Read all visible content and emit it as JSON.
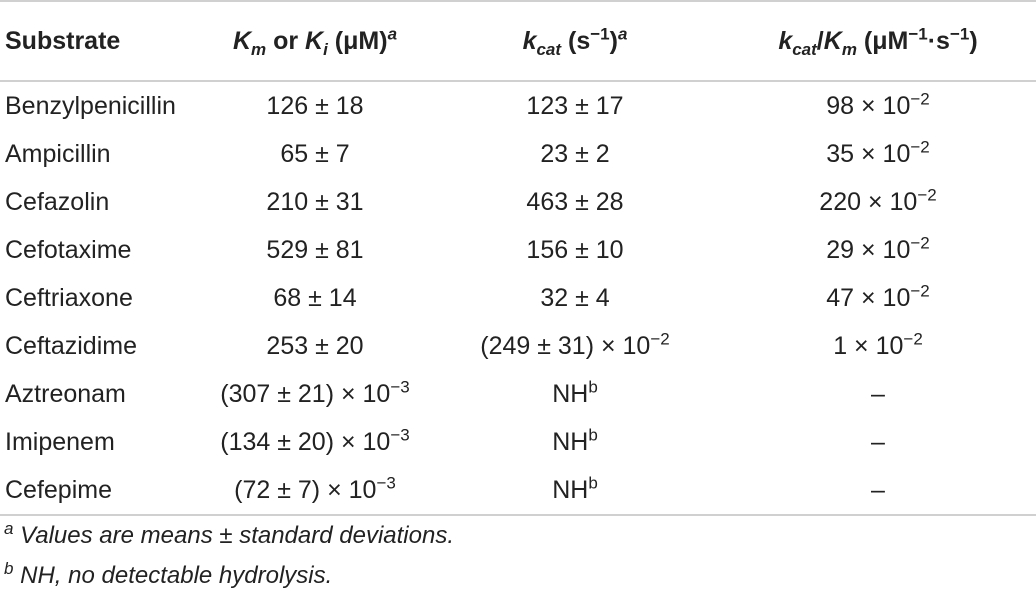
{
  "table": {
    "header": [
      [
        "Substrate"
      ],
      [
        "K",
        "m",
        " or ",
        "K",
        "i",
        " (μM)",
        "a"
      ],
      [
        "k",
        "cat",
        " (s",
        "−1",
        ")",
        "a"
      ],
      [
        "k",
        "cat",
        "/",
        "K",
        "m",
        " (μM",
        "−1",
        "·s",
        "−1",
        ")"
      ]
    ],
    "rows": [
      [
        "Benzylpenicillin",
        "126 ± 18",
        "123 ± 17",
        [
          "98 × 10",
          "−2"
        ]
      ],
      [
        "Ampicillin",
        "65 ± 7",
        "23 ± 2",
        [
          "35 × 10",
          "−2"
        ]
      ],
      [
        "Cefazolin",
        "210 ± 31",
        "463 ± 28",
        [
          "220 × 10",
          "−2"
        ]
      ],
      [
        "Cefotaxime",
        "529 ± 81",
        "156 ± 10",
        [
          "29 × 10",
          "−2"
        ]
      ],
      [
        "Ceftriaxone",
        "68 ± 14",
        "32 ± 4",
        [
          "47 × 10",
          "−2"
        ]
      ],
      [
        "Ceftazidime",
        "253 ± 20",
        [
          "(249 ± 31) × 10",
          "−2"
        ],
        [
          "1 × 10",
          "−2"
        ]
      ],
      [
        "Aztreonam",
        [
          "(307 ± 21) × 10",
          "−3"
        ],
        [
          "NH",
          "b"
        ],
        "–"
      ],
      [
        "Imipenem",
        [
          "(134 ± 20) × 10",
          "−3"
        ],
        [
          "NH",
          "b"
        ],
        "–"
      ],
      [
        "Cefepime",
        [
          "(72 ± 7) × 10",
          "−3"
        ],
        [
          "NH",
          "b"
        ],
        "–"
      ]
    ]
  },
  "footnotes": [
    [
      "a",
      " Values are means ± standard deviations."
    ],
    [
      "b",
      " NH, no detectable hydrolysis."
    ]
  ]
}
